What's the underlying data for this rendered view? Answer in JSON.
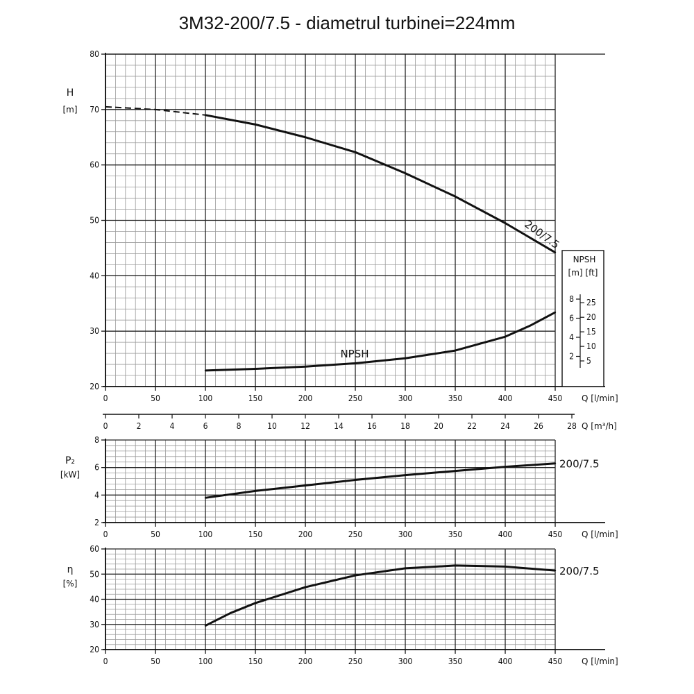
{
  "title": "3M32-200/7.5 - diametrul turbinei=224mm",
  "chart_data": [
    {
      "id": "head",
      "type": "line",
      "xlabel": "Q [l/min]",
      "x2label": "Q [m³/h]",
      "ylabel": "H",
      "yunit": "[m]",
      "xlim": [
        0,
        450
      ],
      "ylim": [
        20,
        80
      ],
      "xticks": [
        0,
        50,
        100,
        150,
        200,
        250,
        300,
        350,
        400,
        450
      ],
      "x2ticks": [
        0,
        2,
        4,
        6,
        8,
        10,
        12,
        14,
        16,
        18,
        20,
        22,
        24,
        26,
        28
      ],
      "yticks": [
        20,
        30,
        40,
        50,
        60,
        70,
        80
      ],
      "grid": true,
      "series": [
        {
          "name": "200/7.5",
          "x": [
            100,
            150,
            200,
            250,
            300,
            350,
            400,
            450
          ],
          "y": [
            69.0,
            67.3,
            65.0,
            62.3,
            58.5,
            54.3,
            49.5,
            44.2
          ],
          "extrapolated": {
            "x": [
              0,
              50,
              100
            ],
            "y": [
              70.5,
              70.0,
              69.0
            ]
          }
        },
        {
          "name": "NPSH",
          "x": [
            100,
            150,
            200,
            250,
            300,
            350,
            400,
            425,
            450
          ],
          "y": [
            22.9,
            23.2,
            23.6,
            24.2,
            25.1,
            26.5,
            29.0,
            31.0,
            33.4
          ]
        }
      ],
      "npsh_scale": {
        "header": "NPSH",
        "units": "[m]  [ft]",
        "m_ticks": [
          2,
          4,
          6,
          8
        ],
        "ft_ticks": [
          5,
          10,
          15,
          20,
          25
        ]
      }
    },
    {
      "id": "power",
      "type": "line",
      "xlabel": "Q [l/min]",
      "ylabel": "P₂",
      "yunit": "[kW]",
      "xlim": [
        0,
        450
      ],
      "ylim": [
        2,
        8
      ],
      "xticks": [
        0,
        50,
        100,
        150,
        200,
        250,
        300,
        350,
        400,
        450
      ],
      "yticks": [
        2,
        4,
        6,
        8
      ],
      "grid": true,
      "series": [
        {
          "name": "200/7.5",
          "x": [
            100,
            150,
            200,
            250,
            300,
            350,
            400,
            450
          ],
          "y": [
            3.8,
            4.3,
            4.7,
            5.1,
            5.45,
            5.75,
            6.05,
            6.3
          ]
        }
      ]
    },
    {
      "id": "efficiency",
      "type": "line",
      "xlabel": "Q [l/min]",
      "ylabel": "η",
      "yunit": "[%]",
      "xlim": [
        0,
        450
      ],
      "ylim": [
        20,
        60
      ],
      "xticks": [
        0,
        50,
        100,
        150,
        200,
        250,
        300,
        350,
        400,
        450
      ],
      "yticks": [
        20,
        30,
        40,
        50,
        60
      ],
      "grid": true,
      "series": [
        {
          "name": "200/7.5",
          "x": [
            100,
            125,
            150,
            200,
            250,
            300,
            350,
            400,
            450
          ],
          "y": [
            29.5,
            34.5,
            38.5,
            44.8,
            49.5,
            52.3,
            53.4,
            53.0,
            51.4
          ]
        }
      ]
    }
  ]
}
